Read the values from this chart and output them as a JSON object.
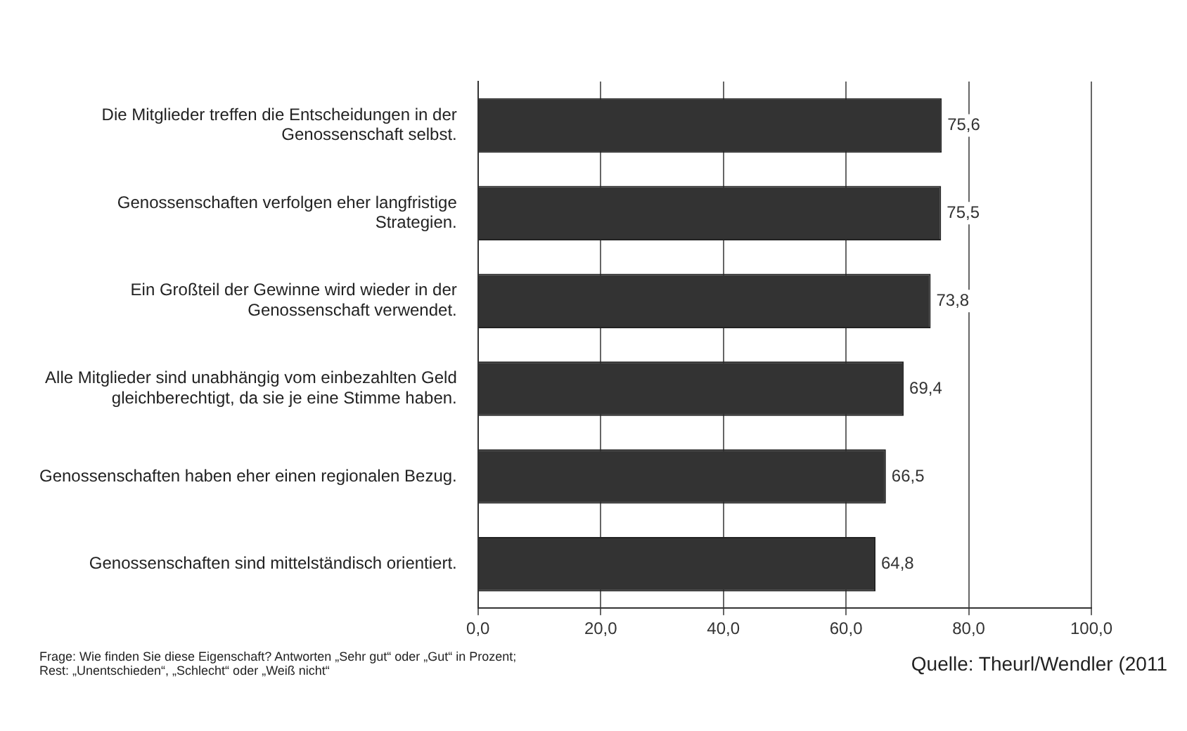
{
  "chart_data": {
    "type": "bar",
    "orientation": "horizontal",
    "categories": [
      "Die Mitglieder treffen die Entscheidungen in der Genossenschaft selbst.",
      "Genossenschaften verfolgen eher langfristige Strategien.",
      "Ein Großteil der Gewinne wird wieder in der Genossenschaft verwendet.",
      "Alle Mitglieder sind unabhängig vom einbezahlten Geld gleichberechtigt, da sie je eine Stimme haben.",
      "Genossenschaften haben eher einen regionalen Bezug.",
      "Genossenschaften sind mittelständisch orientiert."
    ],
    "values": [
      75.6,
      75.5,
      73.8,
      69.4,
      66.5,
      64.8
    ],
    "color": "#333333",
    "xlim": [
      0,
      100
    ],
    "xticks": [
      {
        "value": 0,
        "label": "0,0"
      },
      {
        "value": 20,
        "label": "20,0"
      },
      {
        "value": 40,
        "label": "40,0"
      },
      {
        "value": 60,
        "label": "60,0"
      },
      {
        "value": 80,
        "label": "80,0"
      },
      {
        "value": 100,
        "label": "100,0"
      }
    ],
    "grid": "x",
    "legend": false,
    "value_labels": [
      "75,6",
      "75,5",
      "73,8",
      "69,4",
      "66,5",
      "64,8"
    ],
    "annotations": [
      "Frage: Wie finden Sie diese Eigenschaft? Antworten „Sehr gut“ oder „Gut“ in Prozent; Rest: „Unentschieden“, „Schlecht“ oder „Weiß nicht“",
      "Quelle: Theurl/Wendler (2011"
    ]
  }
}
